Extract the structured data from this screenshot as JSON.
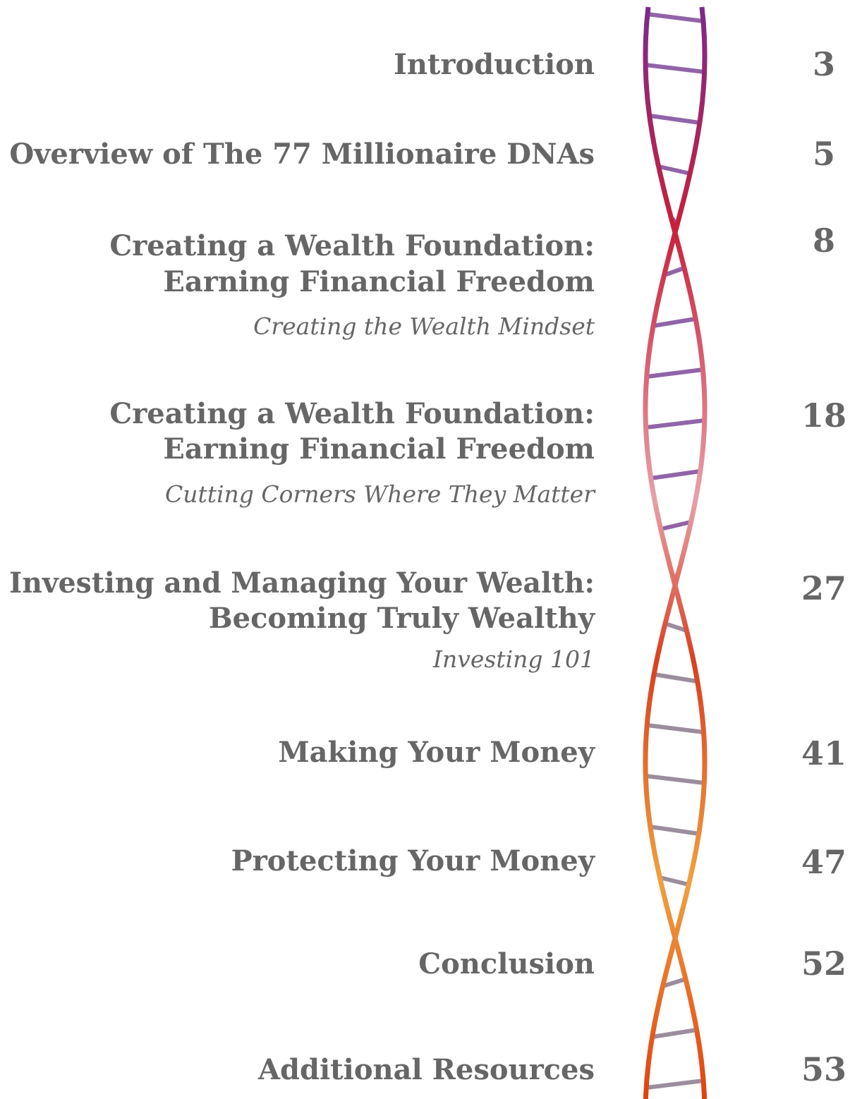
{
  "entries": [
    {
      "title": [
        "Introduction"
      ],
      "page": 3
    },
    {
      "title": [
        "Overview of The 77 Millionaire DNAs"
      ],
      "page": 5
    },
    {
      "title": [
        "Creating a Wealth Foundation:",
        "Earning Financial Freedom"
      ],
      "subtitle": "Creating the Wealth Mindset",
      "page": 8
    },
    {
      "title": [
        "Creating a Wealth Foundation:",
        "Earning Financial Freedom"
      ],
      "subtitle": "Cutting Corners Where They Matter",
      "page": 18
    },
    {
      "title": [
        "Investing and Managing Your Wealth:",
        "Becoming Truly Wealthy"
      ],
      "subtitle": "Investing 101",
      "page": 27
    },
    {
      "title": [
        "Making Your Money"
      ],
      "page": 41
    },
    {
      "title": [
        "Protecting Your Money"
      ],
      "page": 47
    },
    {
      "title": [
        "Conclusion"
      ],
      "page": 52
    },
    {
      "title": [
        "Additional Resources"
      ],
      "page": 53
    }
  ]
}
